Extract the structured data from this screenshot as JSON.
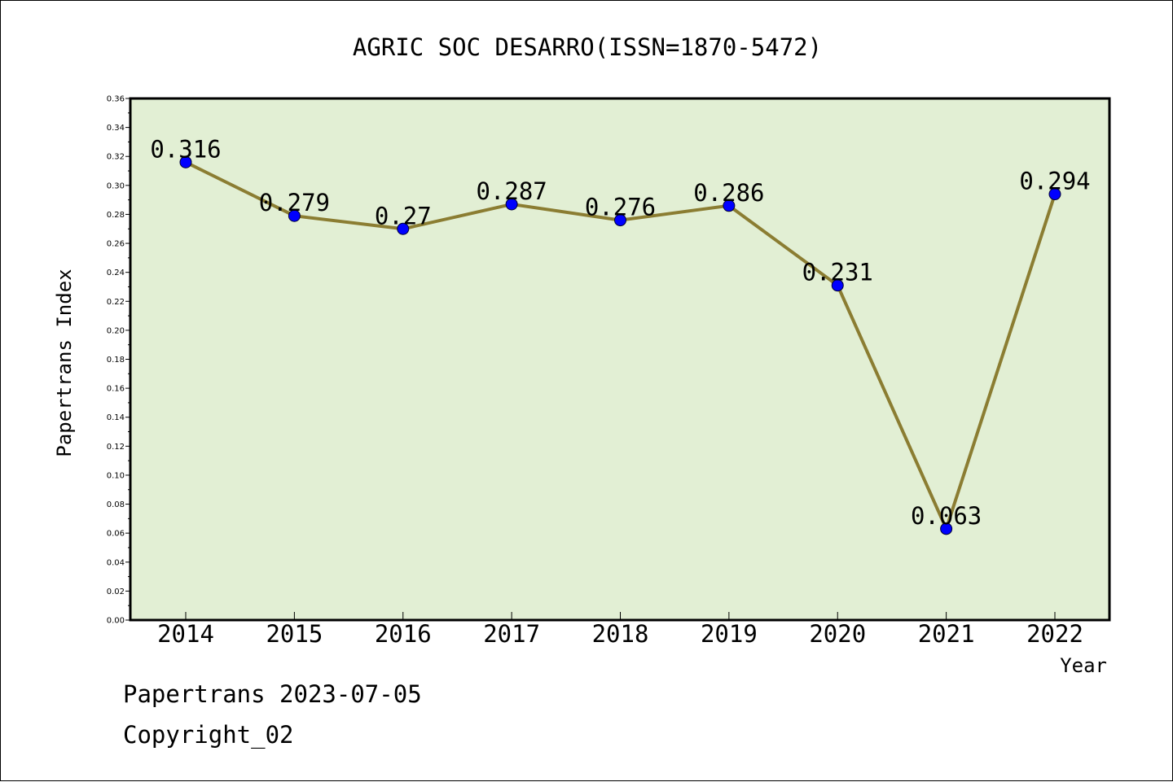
{
  "chart_data": {
    "type": "line",
    "title": "AGRIC SOC DESARRO(ISSN=1870-5472)",
    "xlabel": "Year",
    "ylabel": "Papertrans Index",
    "categories": [
      "2014",
      "2015",
      "2016",
      "2017",
      "2018",
      "2019",
      "2020",
      "2021",
      "2022"
    ],
    "values": [
      0.316,
      0.279,
      0.27,
      0.287,
      0.276,
      0.286,
      0.231,
      0.063,
      0.294
    ],
    "data_labels": [
      "0.316",
      "0.279",
      "0.27",
      "0.287",
      "0.276",
      "0.286",
      "0.231",
      "0.063",
      "0.294"
    ],
    "ylim": [
      0,
      0.36
    ],
    "yticks": [
      "0.00",
      "0.02",
      "0.04",
      "0.06",
      "0.08",
      "0.10",
      "0.12",
      "0.14",
      "0.16",
      "0.18",
      "0.20",
      "0.22",
      "0.24",
      "0.26",
      "0.28",
      "0.30",
      "0.32",
      "0.34",
      "0.36"
    ],
    "grid": false,
    "colors": {
      "plot_background": "#e2efd4",
      "line": "#8b7d32",
      "marker": "#0000ff"
    }
  },
  "footer": {
    "line1": "Papertrans 2023-07-05",
    "line2": "Copyright_02"
  }
}
